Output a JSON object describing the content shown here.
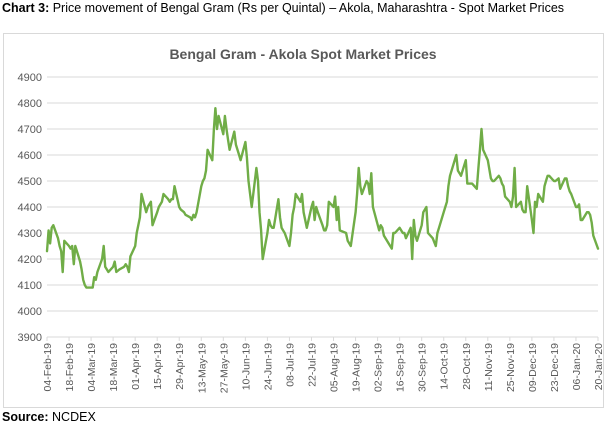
{
  "caption": {
    "label": "Chart 3:",
    "text": " Price movement of Bengal Gram (Rs per Quintal) – Akola, Maharashtra - Spot Market Prices"
  },
  "source": {
    "label": "Source:",
    "text": " NCDEX"
  },
  "colors": {
    "line": "#70ad47",
    "grid": "#d9d9d9",
    "axis_text": "#595959",
    "title": "#595959"
  },
  "chart_data": {
    "type": "line",
    "title": "Bengal Gram - Akola Spot Market Prices",
    "xlabel": "",
    "ylabel": "",
    "ylim": [
      3900,
      4900
    ],
    "yticks": [
      3900,
      4000,
      4100,
      4200,
      4300,
      4400,
      4500,
      4600,
      4700,
      4800,
      4900
    ],
    "grid": "horizontal",
    "legend": "none",
    "x_tick_labels": [
      "04-Feb-19",
      "18-Feb-19",
      "04-Mar-19",
      "18-Mar-19",
      "01-Apr-19",
      "15-Apr-19",
      "29-Apr-19",
      "13-May-19",
      "27-May-19",
      "10-Jun-19",
      "24-Jun-19",
      "08-Jul-19",
      "22-Jul-19",
      "05-Aug-19",
      "19-Aug-19",
      "02-Sep-19",
      "16-Sep-19",
      "30-Sep-19",
      "14-Oct-19",
      "28-Oct-19",
      "11-Nov-19",
      "25-Nov-19",
      "09-Dec-19",
      "23-Dec-19",
      "06-Jan-20",
      "20-Jan-20"
    ],
    "x_start": "2019-02-04",
    "x_end": "2020-01-20",
    "series": [
      {
        "values": [
          [
            "2019-02-04",
            4230
          ],
          [
            "2019-02-05",
            4310
          ],
          [
            "2019-02-06",
            4260
          ],
          [
            "2019-02-07",
            4320
          ],
          [
            "2019-02-08",
            4330
          ],
          [
            "2019-02-11",
            4280
          ],
          [
            "2019-02-12",
            4250
          ],
          [
            "2019-02-13",
            4230
          ],
          [
            "2019-02-14",
            4150
          ],
          [
            "2019-02-15",
            4270
          ],
          [
            "2019-02-18",
            4250
          ],
          [
            "2019-02-19",
            4240
          ],
          [
            "2019-02-20",
            4250
          ],
          [
            "2019-02-21",
            4180
          ],
          [
            "2019-02-22",
            4250
          ],
          [
            "2019-02-25",
            4190
          ],
          [
            "2019-02-26",
            4160
          ],
          [
            "2019-02-27",
            4120
          ],
          [
            "2019-02-28",
            4100
          ],
          [
            "2019-03-01",
            4090
          ],
          [
            "2019-03-04",
            4090
          ],
          [
            "2019-03-05",
            4090
          ],
          [
            "2019-03-06",
            4130
          ],
          [
            "2019-03-07",
            4120
          ],
          [
            "2019-03-08",
            4150
          ],
          [
            "2019-03-11",
            4200
          ],
          [
            "2019-03-12",
            4250
          ],
          [
            "2019-03-13",
            4170
          ],
          [
            "2019-03-14",
            4160
          ],
          [
            "2019-03-15",
            4150
          ],
          [
            "2019-03-18",
            4170
          ],
          [
            "2019-03-19",
            4190
          ],
          [
            "2019-03-20",
            4150
          ],
          [
            "2019-03-22",
            4160
          ],
          [
            "2019-03-25",
            4170
          ],
          [
            "2019-03-26",
            4180
          ],
          [
            "2019-03-27",
            4170
          ],
          [
            "2019-03-28",
            4150
          ],
          [
            "2019-03-29",
            4210
          ],
          [
            "2019-04-01",
            4250
          ],
          [
            "2019-04-02",
            4300
          ],
          [
            "2019-04-03",
            4330
          ],
          [
            "2019-04-04",
            4360
          ],
          [
            "2019-04-05",
            4450
          ],
          [
            "2019-04-08",
            4380
          ],
          [
            "2019-04-09",
            4400
          ],
          [
            "2019-04-10",
            4410
          ],
          [
            "2019-04-11",
            4420
          ],
          [
            "2019-04-12",
            4330
          ],
          [
            "2019-04-15",
            4380
          ],
          [
            "2019-04-16",
            4400
          ],
          [
            "2019-04-18",
            4420
          ],
          [
            "2019-04-19",
            4450
          ],
          [
            "2019-04-22",
            4430
          ],
          [
            "2019-04-23",
            4420
          ],
          [
            "2019-04-24",
            4430
          ],
          [
            "2019-04-25",
            4430
          ],
          [
            "2019-04-26",
            4480
          ],
          [
            "2019-04-29",
            4400
          ],
          [
            "2019-04-30",
            4390
          ],
          [
            "2019-05-02",
            4380
          ],
          [
            "2019-05-03",
            4370
          ],
          [
            "2019-05-06",
            4360
          ],
          [
            "2019-05-07",
            4350
          ],
          [
            "2019-05-08",
            4370
          ],
          [
            "2019-05-09",
            4360
          ],
          [
            "2019-05-10",
            4380
          ],
          [
            "2019-05-13",
            4480
          ],
          [
            "2019-05-14",
            4500
          ],
          [
            "2019-05-15",
            4510
          ],
          [
            "2019-05-16",
            4540
          ],
          [
            "2019-05-17",
            4620
          ],
          [
            "2019-05-20",
            4580
          ],
          [
            "2019-05-21",
            4700
          ],
          [
            "2019-05-22",
            4780
          ],
          [
            "2019-05-23",
            4700
          ],
          [
            "2019-05-24",
            4750
          ],
          [
            "2019-05-27",
            4680
          ],
          [
            "2019-05-28",
            4750
          ],
          [
            "2019-05-29",
            4700
          ],
          [
            "2019-05-30",
            4660
          ],
          [
            "2019-05-31",
            4620
          ],
          [
            "2019-06-03",
            4690
          ],
          [
            "2019-06-04",
            4640
          ],
          [
            "2019-06-06",
            4600
          ],
          [
            "2019-06-07",
            4580
          ],
          [
            "2019-06-10",
            4650
          ],
          [
            "2019-06-11",
            4590
          ],
          [
            "2019-06-12",
            4500
          ],
          [
            "2019-06-13",
            4450
          ],
          [
            "2019-06-14",
            4400
          ],
          [
            "2019-06-17",
            4550
          ],
          [
            "2019-06-18",
            4500
          ],
          [
            "2019-06-19",
            4380
          ],
          [
            "2019-06-20",
            4310
          ],
          [
            "2019-06-21",
            4200
          ],
          [
            "2019-06-24",
            4300
          ],
          [
            "2019-06-25",
            4350
          ],
          [
            "2019-06-26",
            4330
          ],
          [
            "2019-06-27",
            4320
          ],
          [
            "2019-06-28",
            4320
          ],
          [
            "2019-07-01",
            4430
          ],
          [
            "2019-07-02",
            4360
          ],
          [
            "2019-07-03",
            4320
          ],
          [
            "2019-07-04",
            4310
          ],
          [
            "2019-07-05",
            4300
          ],
          [
            "2019-07-08",
            4250
          ],
          [
            "2019-07-09",
            4300
          ],
          [
            "2019-07-10",
            4370
          ],
          [
            "2019-07-11",
            4400
          ],
          [
            "2019-07-12",
            4450
          ],
          [
            "2019-07-15",
            4420
          ],
          [
            "2019-07-16",
            4450
          ],
          [
            "2019-07-17",
            4380
          ],
          [
            "2019-07-18",
            4350
          ],
          [
            "2019-07-19",
            4320
          ],
          [
            "2019-07-22",
            4400
          ],
          [
            "2019-07-23",
            4420
          ],
          [
            "2019-07-24",
            4350
          ],
          [
            "2019-07-25",
            4400
          ],
          [
            "2019-07-26",
            4380
          ],
          [
            "2019-07-29",
            4330
          ],
          [
            "2019-07-30",
            4310
          ],
          [
            "2019-07-31",
            4310
          ],
          [
            "2019-08-01",
            4330
          ],
          [
            "2019-08-02",
            4420
          ],
          [
            "2019-08-05",
            4400
          ],
          [
            "2019-08-06",
            4440
          ],
          [
            "2019-08-07",
            4350
          ],
          [
            "2019-08-08",
            4400
          ],
          [
            "2019-08-09",
            4310
          ],
          [
            "2019-08-13",
            4300
          ],
          [
            "2019-08-14",
            4270
          ],
          [
            "2019-08-16",
            4250
          ],
          [
            "2019-08-19",
            4380
          ],
          [
            "2019-08-20",
            4450
          ],
          [
            "2019-08-21",
            4550
          ],
          [
            "2019-08-22",
            4480
          ],
          [
            "2019-08-23",
            4450
          ],
          [
            "2019-08-26",
            4500
          ],
          [
            "2019-08-27",
            4490
          ],
          [
            "2019-08-28",
            4450
          ],
          [
            "2019-08-29",
            4530
          ],
          [
            "2019-08-30",
            4400
          ],
          [
            "2019-09-03",
            4310
          ],
          [
            "2019-09-04",
            4330
          ],
          [
            "2019-09-05",
            4320
          ],
          [
            "2019-09-06",
            4290
          ],
          [
            "2019-09-09",
            4260
          ],
          [
            "2019-09-11",
            4240
          ],
          [
            "2019-09-12",
            4300
          ],
          [
            "2019-09-13",
            4300
          ],
          [
            "2019-09-16",
            4320
          ],
          [
            "2019-09-17",
            4310
          ],
          [
            "2019-09-18",
            4300
          ],
          [
            "2019-09-19",
            4300
          ],
          [
            "2019-09-20",
            4280
          ],
          [
            "2019-09-23",
            4320
          ],
          [
            "2019-09-24",
            4200
          ],
          [
            "2019-09-25",
            4350
          ],
          [
            "2019-09-26",
            4290
          ],
          [
            "2019-09-27",
            4270
          ],
          [
            "2019-09-30",
            4330
          ],
          [
            "2019-10-01",
            4380
          ],
          [
            "2019-10-03",
            4400
          ],
          [
            "2019-10-04",
            4300
          ],
          [
            "2019-10-07",
            4280
          ],
          [
            "2019-10-09",
            4250
          ],
          [
            "2019-10-10",
            4300
          ],
          [
            "2019-10-11",
            4320
          ],
          [
            "2019-10-14",
            4380
          ],
          [
            "2019-10-15",
            4400
          ],
          [
            "2019-10-16",
            4420
          ],
          [
            "2019-10-17",
            4480
          ],
          [
            "2019-10-18",
            4520
          ],
          [
            "2019-10-22",
            4600
          ],
          [
            "2019-10-23",
            4540
          ],
          [
            "2019-10-24",
            4530
          ],
          [
            "2019-10-25",
            4520
          ],
          [
            "2019-10-28",
            4580
          ],
          [
            "2019-10-29",
            4490
          ],
          [
            "2019-10-30",
            4490
          ],
          [
            "2019-10-31",
            4490
          ],
          [
            "2019-11-01",
            4490
          ],
          [
            "2019-11-04",
            4470
          ],
          [
            "2019-11-05",
            4550
          ],
          [
            "2019-11-06",
            4620
          ],
          [
            "2019-11-07",
            4700
          ],
          [
            "2019-11-08",
            4620
          ],
          [
            "2019-11-11",
            4580
          ],
          [
            "2019-11-13",
            4510
          ],
          [
            "2019-11-14",
            4500
          ],
          [
            "2019-11-15",
            4500
          ],
          [
            "2019-11-18",
            4520
          ],
          [
            "2019-11-19",
            4510
          ],
          [
            "2019-11-20",
            4490
          ],
          [
            "2019-11-21",
            4480
          ],
          [
            "2019-11-22",
            4440
          ],
          [
            "2019-11-25",
            4420
          ],
          [
            "2019-11-26",
            4400
          ],
          [
            "2019-11-27",
            4440
          ],
          [
            "2019-11-28",
            4550
          ],
          [
            "2019-11-29",
            4400
          ],
          [
            "2019-12-02",
            4420
          ],
          [
            "2019-12-03",
            4390
          ],
          [
            "2019-12-04",
            4380
          ],
          [
            "2019-12-05",
            4380
          ],
          [
            "2019-12-06",
            4480
          ],
          [
            "2019-12-09",
            4350
          ],
          [
            "2019-12-10",
            4300
          ],
          [
            "2019-12-11",
            4420
          ],
          [
            "2019-12-12",
            4400
          ],
          [
            "2019-12-13",
            4450
          ],
          [
            "2019-12-16",
            4420
          ],
          [
            "2019-12-17",
            4480
          ],
          [
            "2019-12-18",
            4500
          ],
          [
            "2019-12-19",
            4520
          ],
          [
            "2019-12-20",
            4520
          ],
          [
            "2019-12-23",
            4500
          ],
          [
            "2019-12-24",
            4500
          ],
          [
            "2019-12-26",
            4510
          ],
          [
            "2019-12-27",
            4470
          ],
          [
            "2019-12-30",
            4510
          ],
          [
            "2019-12-31",
            4510
          ],
          [
            "2020-01-01",
            4480
          ],
          [
            "2020-01-02",
            4460
          ],
          [
            "2020-01-03",
            4450
          ],
          [
            "2020-01-06",
            4400
          ],
          [
            "2020-01-07",
            4400
          ],
          [
            "2020-01-08",
            4410
          ],
          [
            "2020-01-09",
            4350
          ],
          [
            "2020-01-10",
            4350
          ],
          [
            "2020-01-13",
            4380
          ],
          [
            "2020-01-14",
            4380
          ],
          [
            "2020-01-15",
            4370
          ],
          [
            "2020-01-16",
            4340
          ],
          [
            "2020-01-17",
            4290
          ],
          [
            "2020-01-20",
            4240
          ]
        ]
      }
    ]
  }
}
